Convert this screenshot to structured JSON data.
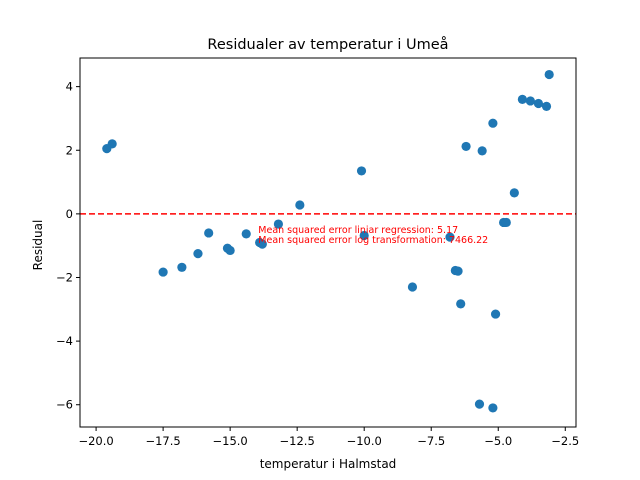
{
  "chart_data": {
    "type": "scatter",
    "title": "Residualer av temperatur i Umeå",
    "xlabel": "temperatur i Halmstad",
    "ylabel": "Residual",
    "xlim": [
      -20.6,
      -2.1
    ],
    "ylim": [
      -6.7,
      4.9
    ],
    "x_ticks": [
      -20.0,
      -17.5,
      -15.0,
      -12.5,
      -10.0,
      -7.5,
      -5.0,
      -2.5
    ],
    "x_tick_labels": [
      "−20.0",
      "−17.5",
      "−15.0",
      "−12.5",
      "−10.0",
      "−7.5",
      "−5.0",
      "−2.5"
    ],
    "y_ticks": [
      -6,
      -4,
      -2,
      0,
      2,
      4
    ],
    "y_tick_labels": [
      "−6",
      "−4",
      "−2",
      "0",
      "2",
      "4"
    ],
    "grid": false,
    "marker_color": "#1f77b4",
    "reference_line": {
      "y": 0,
      "style": "dashed",
      "color": "#ff0000"
    },
    "annotations": [
      {
        "text": "Mean squared error liniar regression: 5.17",
        "color": "#ff0000"
      },
      {
        "text": "Mean squared error log transformation: 7466.22",
        "color": "#ff0000"
      }
    ],
    "points": [
      {
        "x": -19.6,
        "y": 2.05
      },
      {
        "x": -19.4,
        "y": 2.2
      },
      {
        "x": -17.5,
        "y": -1.83
      },
      {
        "x": -16.8,
        "y": -1.68
      },
      {
        "x": -16.2,
        "y": -1.25
      },
      {
        "x": -15.8,
        "y": -0.6
      },
      {
        "x": -15.1,
        "y": -1.08
      },
      {
        "x": -15.0,
        "y": -1.15
      },
      {
        "x": -14.4,
        "y": -0.63
      },
      {
        "x": -13.9,
        "y": -0.9
      },
      {
        "x": -13.8,
        "y": -0.95
      },
      {
        "x": -13.2,
        "y": -0.32
      },
      {
        "x": -12.4,
        "y": 0.28
      },
      {
        "x": -10.1,
        "y": 1.35
      },
      {
        "x": -10.0,
        "y": -0.68
      },
      {
        "x": -8.2,
        "y": -2.3
      },
      {
        "x": -6.8,
        "y": -0.73
      },
      {
        "x": -6.6,
        "y": -1.78
      },
      {
        "x": -6.5,
        "y": -1.8
      },
      {
        "x": -6.4,
        "y": -2.83
      },
      {
        "x": -6.2,
        "y": 2.12
      },
      {
        "x": -5.7,
        "y": -5.98
      },
      {
        "x": -5.6,
        "y": 1.98
      },
      {
        "x": -5.2,
        "y": 2.85
      },
      {
        "x": -5.2,
        "y": -6.1
      },
      {
        "x": -5.1,
        "y": -3.15
      },
      {
        "x": -4.8,
        "y": -0.27
      },
      {
        "x": -4.7,
        "y": -0.27
      },
      {
        "x": -4.4,
        "y": 0.66
      },
      {
        "x": -4.1,
        "y": 3.6
      },
      {
        "x": -3.8,
        "y": 3.55
      },
      {
        "x": -3.5,
        "y": 3.47
      },
      {
        "x": -3.2,
        "y": 3.38
      },
      {
        "x": -3.1,
        "y": 4.38
      }
    ]
  }
}
